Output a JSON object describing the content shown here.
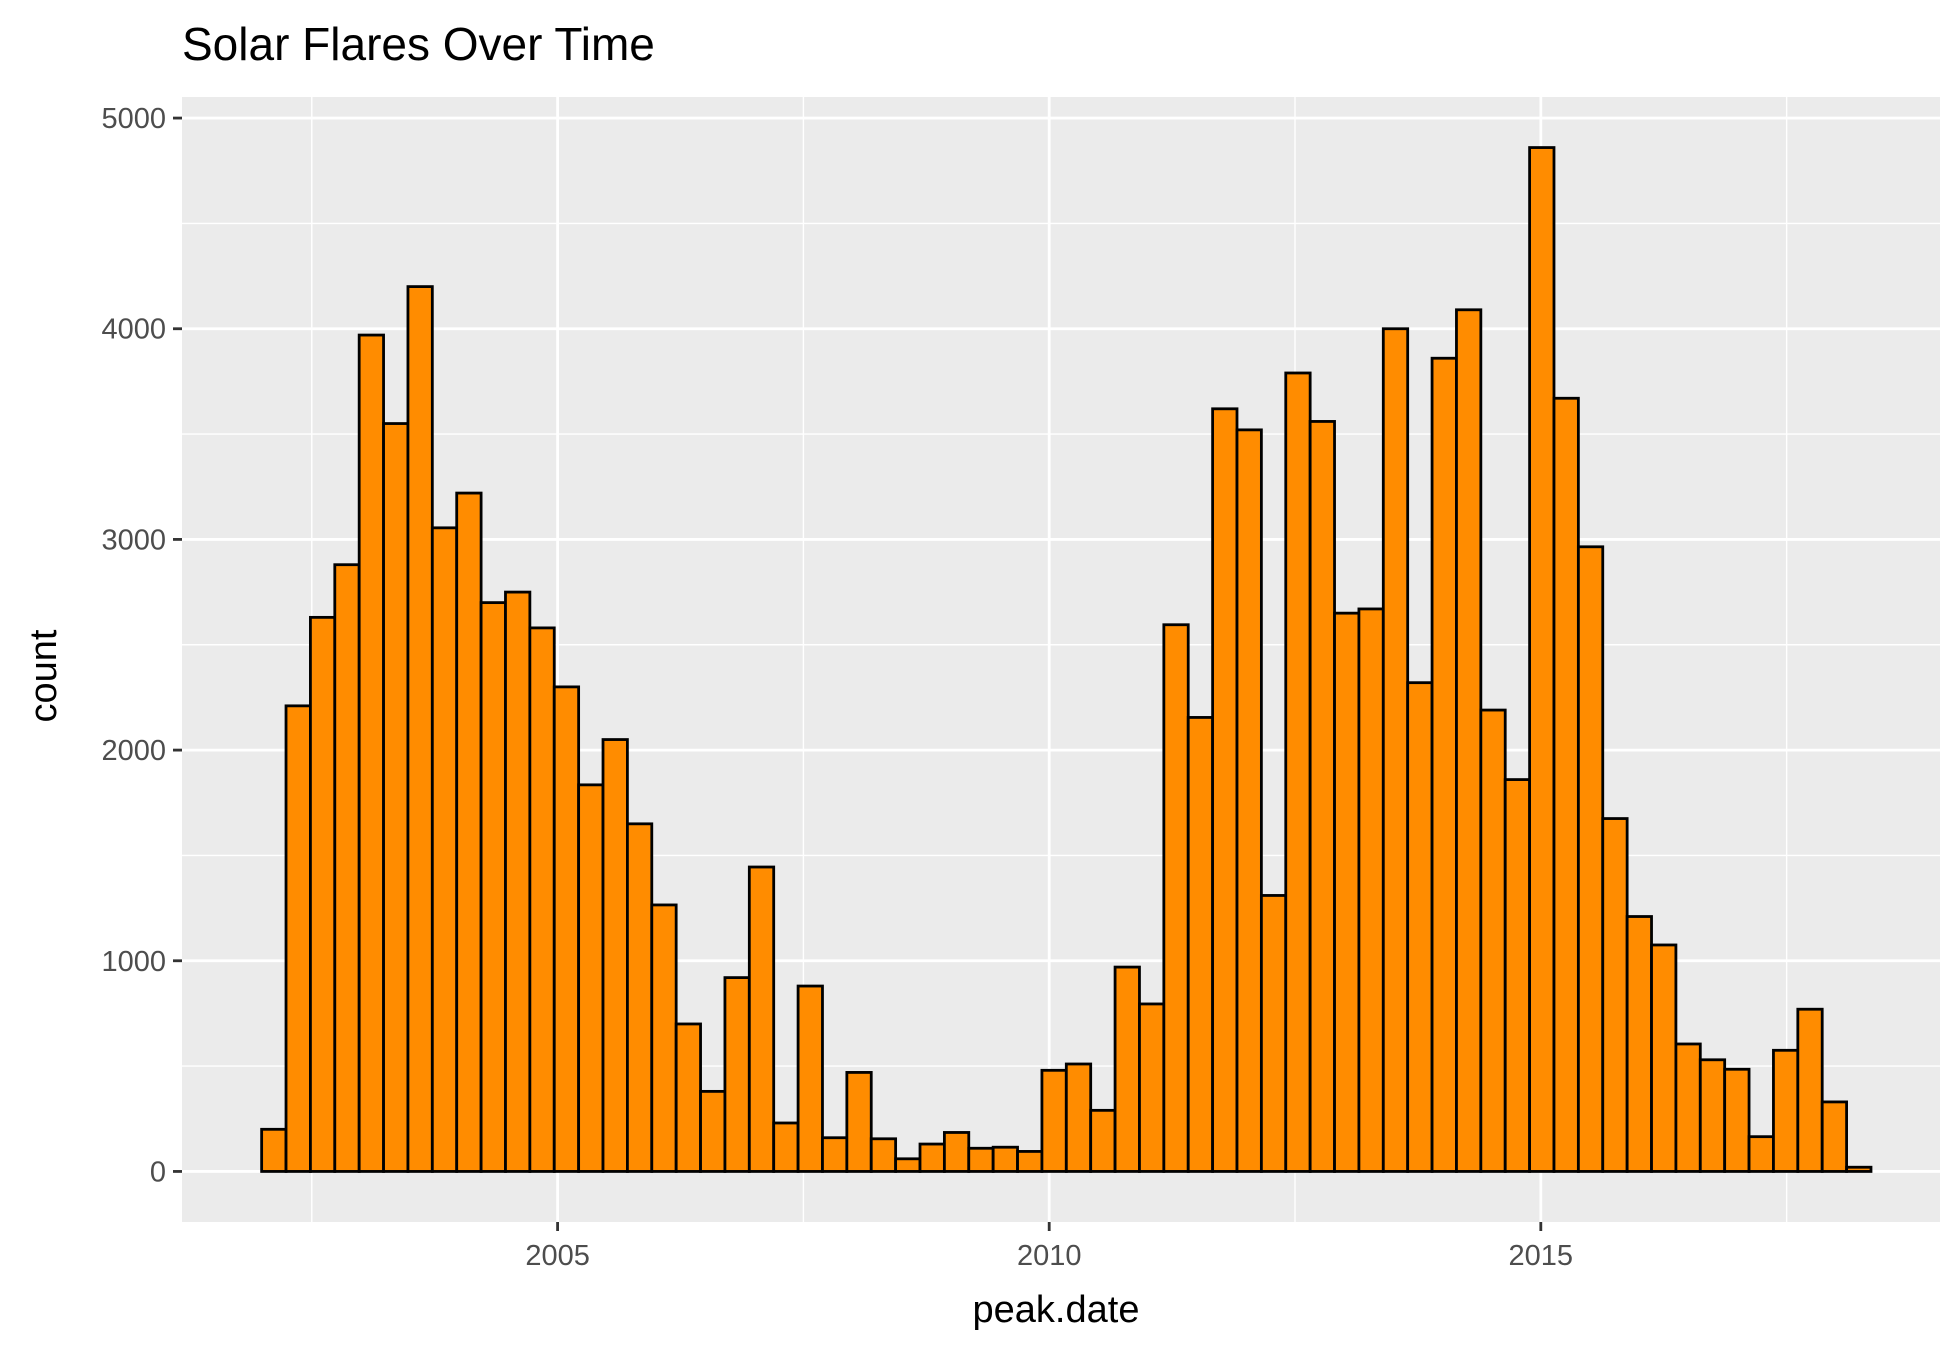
{
  "chart_data": {
    "type": "bar",
    "title": "Solar Flares Over Time",
    "xlabel": "peak.date",
    "ylabel": "count",
    "xlim": [
      2001.18,
      2019.06
    ],
    "ylim": [
      -240,
      5100
    ],
    "x_ticks": [
      2005,
      2010,
      2015
    ],
    "x_tick_labels": [
      "2005",
      "2010",
      "2015"
    ],
    "y_ticks": [
      0,
      1000,
      2000,
      3000,
      4000,
      5000
    ],
    "y_tick_labels": [
      "0",
      "1000",
      "2000",
      "3000",
      "4000",
      "5000"
    ],
    "grid": true,
    "bin_start": 2001.99,
    "bin_width": 0.248,
    "values": [
      200,
      2210,
      2630,
      2880,
      3970,
      3550,
      4200,
      3055,
      3220,
      2700,
      2750,
      2580,
      2300,
      1835,
      2050,
      1650,
      1265,
      700,
      380,
      920,
      1445,
      230,
      880,
      160,
      470,
      155,
      60,
      130,
      185,
      110,
      115,
      95,
      480,
      510,
      290,
      970,
      795,
      2595,
      2155,
      3620,
      3520,
      1310,
      3790,
      3560,
      2650,
      2670,
      4000,
      2320,
      3860,
      4090,
      2190,
      1860,
      4860,
      3670,
      2965,
      1675,
      1210,
      1075,
      605,
      530,
      485,
      165,
      575,
      770,
      330,
      20
    ],
    "colors": {
      "bar_fill": "#ff8c00",
      "bar_outline": "#000000",
      "panel": "#ebebeb",
      "grid": "#ffffff"
    }
  }
}
